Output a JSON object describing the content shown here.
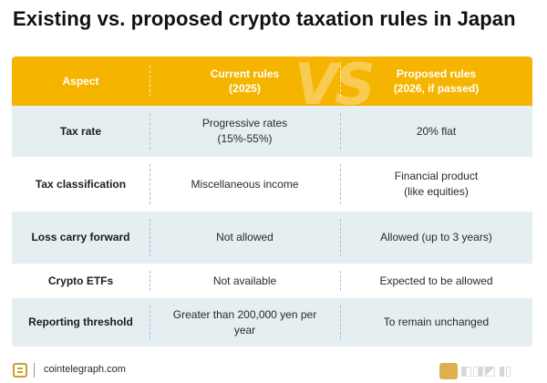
{
  "title": "Existing vs. proposed crypto taxation rules in Japan",
  "header": {
    "aspect": "Aspect",
    "current_line1": "Current rules",
    "current_line2": "(2025)",
    "proposed_line1": "Proposed rules",
    "proposed_line2": "(2026, if passed)",
    "watermark": "VS"
  },
  "rows": [
    {
      "aspect": "Tax rate",
      "current": [
        "Progressive rates",
        "(15%-55%)"
      ],
      "proposed": [
        "20% flat"
      ]
    },
    {
      "aspect": "Tax classification",
      "current": [
        "Miscellaneous income"
      ],
      "proposed": [
        "Financial product",
        "(like equities)"
      ]
    },
    {
      "aspect": "Loss carry forward",
      "current": [
        "Not allowed"
      ],
      "proposed": [
        "Allowed (up to 3 years)"
      ]
    },
    {
      "aspect": "Crypto ETFs",
      "current": [
        "Not available"
      ],
      "proposed": [
        "Expected to be allowed"
      ]
    },
    {
      "aspect": "Reporting threshold",
      "current": [
        "Greater than 200,000 yen per",
        "year"
      ],
      "proposed": [
        "To remain unchanged"
      ]
    }
  ],
  "footer": {
    "url": "cointelegraph.com",
    "brand_icon": "cointelegraph-logo-icon",
    "watermark_icon": "exchange-watermark-icon"
  },
  "colors": {
    "header_bg": "#f5b400",
    "shaded_row": "#e5eef1",
    "divider": "#9cc3cf"
  }
}
